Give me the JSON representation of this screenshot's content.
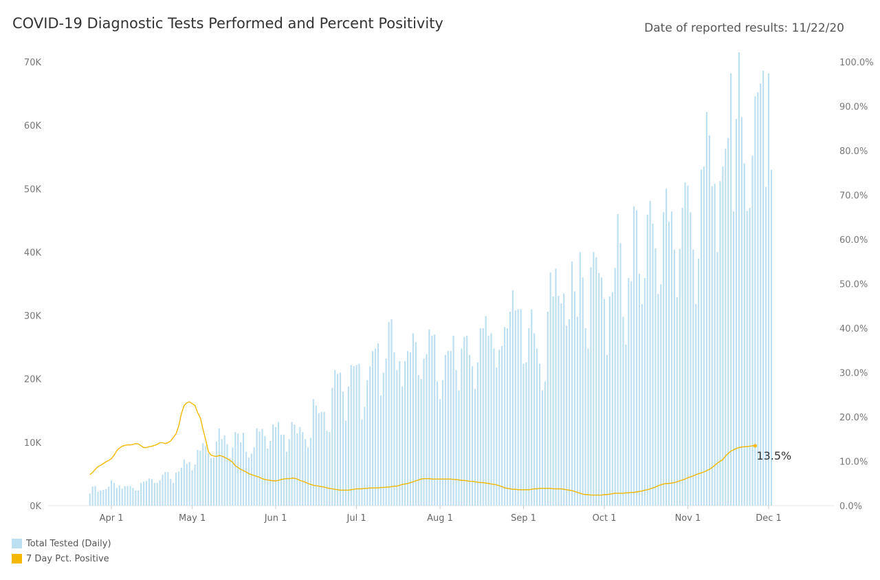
{
  "header": {
    "title": "COVID-19 Diagnostic Tests Performed and Percent Positivity",
    "report_date": "Date of reported results: 11/22/20"
  },
  "legend": {
    "items": [
      {
        "label": "Total Tested (Daily)",
        "color": "#bcdff1"
      },
      {
        "label": "7 Day Pct. Positive",
        "color": "#f5b800"
      }
    ]
  },
  "chart_data": {
    "type": "bar",
    "title": "COVID-19 Diagnostic Tests Performed and Percent Positivity",
    "x_start_date": "2020-03-24",
    "x_range_days": [
      -15.5,
      276.5
    ],
    "x_ticks": [
      {
        "label": "Apr 1",
        "day": 8
      },
      {
        "label": "May 1",
        "day": 38
      },
      {
        "label": "Jun 1",
        "day": 69
      },
      {
        "label": "Jul 1",
        "day": 99
      },
      {
        "label": "Aug 1",
        "day": 130
      },
      {
        "label": "Sep 1",
        "day": 161
      },
      {
        "label": "Oct 1",
        "day": 191
      },
      {
        "label": "Nov 1",
        "day": 222
      },
      {
        "label": "Dec 1",
        "day": 252
      }
    ],
    "y_left": {
      "min": 0,
      "max": 70000,
      "ticks": [
        0,
        10000,
        20000,
        30000,
        40000,
        50000,
        60000,
        70000
      ],
      "tick_labels": [
        "0K",
        "10K",
        "20K",
        "30K",
        "40K",
        "50K",
        "60K",
        "70K"
      ]
    },
    "y_right": {
      "min": 0,
      "max": 100,
      "ticks": [
        0,
        10,
        20,
        30,
        40,
        50,
        60,
        70,
        80,
        90,
        100
      ],
      "tick_labels": [
        "0.0%",
        "10.0%",
        "20.0%",
        "30.0%",
        "40.0%",
        "50.0%",
        "60.0%",
        "70.0%",
        "80.0%",
        "90.0%",
        "100.0%"
      ]
    },
    "series": [
      {
        "name": "Total Tested (Daily)",
        "axis": "left",
        "color": "#bcdff1",
        "values": [
          1900,
          3000,
          3100,
          2200,
          2400,
          2500,
          2600,
          3000,
          4000,
          3600,
          2800,
          3200,
          2700,
          3100,
          3100,
          3100,
          2800,
          2400,
          2400,
          3600,
          3800,
          3900,
          4300,
          4200,
          3600,
          3600,
          4000,
          4900,
          5300,
          5300,
          4200,
          3600,
          5200,
          5400,
          6000,
          7300,
          6600,
          6900,
          5600,
          6500,
          8800,
          8700,
          9900,
          9400,
          8300,
          7500,
          7600,
          10100,
          12200,
          10500,
          11100,
          9700,
          7500,
          9200,
          11600,
          11400,
          10000,
          11500,
          8500,
          7600,
          8200,
          9200,
          12200,
          11700,
          12100,
          11000,
          9000,
          10200,
          12800,
          12400,
          13200,
          11200,
          11200,
          8500,
          10500,
          13200,
          12800,
          11400,
          12400,
          11600,
          10500,
          9200,
          10700,
          16800,
          15800,
          14600,
          14800,
          14800,
          11800,
          11600,
          18600,
          21400,
          20800,
          21000,
          18000,
          13400,
          18800,
          22200,
          22000,
          22200,
          22400,
          13600,
          15600,
          19800,
          22000,
          24400,
          24800,
          25600,
          17400,
          21000,
          23200,
          29000,
          29400,
          24200,
          21400,
          22800,
          18800,
          22800,
          24400,
          24200,
          27200,
          25800,
          20600,
          20000,
          23200,
          23900,
          27800,
          26800,
          27000,
          19600,
          16800,
          19800,
          23800,
          24400,
          24400,
          26800,
          21400,
          18200,
          24800,
          26600,
          26800,
          23800,
          22000,
          18400,
          22600,
          28000,
          28000,
          29900,
          26800,
          27200,
          24800,
          21800,
          24600,
          25200,
          28200,
          28000,
          30600,
          34000,
          30800,
          31000,
          31000,
          22400,
          22600,
          28000,
          31000,
          27200,
          24800,
          22400,
          18200,
          19600,
          30600,
          36800,
          33000,
          37400,
          33100,
          31900,
          33500,
          28400,
          29400,
          38500,
          33800,
          29800,
          40000,
          36000,
          28000,
          24800,
          37600,
          40000,
          39200,
          36700,
          36000,
          32600,
          23800,
          33000,
          33700,
          37500,
          46000,
          41400,
          29800,
          25400,
          35900,
          35400,
          47200,
          46600,
          36600,
          31800,
          35900,
          45900,
          48100,
          44500,
          40600,
          33400,
          34900,
          46300,
          50000,
          44800,
          46400,
          40400,
          32900,
          40500,
          47000,
          51000,
          50500,
          46300,
          40400,
          31800,
          39000,
          53000,
          53500,
          62100,
          58400,
          50400,
          50800,
          40000,
          51200,
          53500,
          56300,
          58000,
          68200,
          46400,
          61000,
          71500,
          61300,
          54000,
          46500,
          47000,
          55200,
          64600,
          65200,
          66600,
          68600,
          50300,
          68200,
          53000
        ]
      },
      {
        "name": "7 Day Pct. Positive",
        "axis": "right",
        "color": "#f5b800",
        "values": [
          7.0,
          7.5,
          8.2,
          8.8,
          9.1,
          9.5,
          9.9,
          10.2,
          10.6,
          11.4,
          12.4,
          13.0,
          13.4,
          13.6,
          13.7,
          13.7,
          13.8,
          14.0,
          13.9,
          13.5,
          13.1,
          13.1,
          13.3,
          13.4,
          13.6,
          13.8,
          14.2,
          14.2,
          14.0,
          14.2,
          14.6,
          15.4,
          16.2,
          18.0,
          20.8,
          22.6,
          23.2,
          23.4,
          23.0,
          22.6,
          21.0,
          19.8,
          17.2,
          14.8,
          12.2,
          11.4,
          11.2,
          11.1,
          11.3,
          11.2,
          10.9,
          10.6,
          10.2,
          9.8,
          9.0,
          8.6,
          8.2,
          7.9,
          7.6,
          7.2,
          7.0,
          6.8,
          6.6,
          6.4,
          6.1,
          5.9,
          5.8,
          5.7,
          5.6,
          5.6,
          5.7,
          5.9,
          6.0,
          6.1,
          6.1,
          6.2,
          6.2,
          6.0,
          5.7,
          5.5,
          5.3,
          5.0,
          4.8,
          4.6,
          4.5,
          4.4,
          4.3,
          4.2,
          4.0,
          3.9,
          3.8,
          3.7,
          3.6,
          3.5,
          3.5,
          3.5,
          3.5,
          3.6,
          3.7,
          3.8,
          3.8,
          3.8,
          3.9,
          3.9,
          4.0,
          4.0,
          4.0,
          4.0,
          4.1,
          4.1,
          4.2,
          4.2,
          4.3,
          4.4,
          4.4,
          4.6,
          4.8,
          4.9,
          5.0,
          5.2,
          5.4,
          5.6,
          5.8,
          6.0,
          6.1,
          6.1,
          6.1,
          6.0,
          6.0,
          6.0,
          6.0,
          6.0,
          6.0,
          6.0,
          6.0,
          5.9,
          5.9,
          5.8,
          5.7,
          5.7,
          5.6,
          5.5,
          5.5,
          5.4,
          5.3,
          5.2,
          5.2,
          5.1,
          5.0,
          4.9,
          4.8,
          4.7,
          4.5,
          4.3,
          4.0,
          3.9,
          3.8,
          3.7,
          3.7,
          3.6,
          3.6,
          3.6,
          3.6,
          3.6,
          3.7,
          3.8,
          3.8,
          3.9,
          3.9,
          3.9,
          3.9,
          3.9,
          3.8,
          3.8,
          3.8,
          3.8,
          3.7,
          3.6,
          3.5,
          3.4,
          3.2,
          3.0,
          2.8,
          2.6,
          2.5,
          2.5,
          2.4,
          2.4,
          2.4,
          2.4,
          2.4,
          2.5,
          2.5,
          2.6,
          2.7,
          2.8,
          2.8,
          2.8,
          2.8,
          2.9,
          2.9,
          3.0,
          3.0,
          3.1,
          3.2,
          3.3,
          3.5,
          3.6,
          3.8,
          4.0,
          4.2,
          4.5,
          4.7,
          4.9,
          5.0,
          5.0,
          5.1,
          5.2,
          5.4,
          5.6,
          5.8,
          6.0,
          6.3,
          6.5,
          6.7,
          7.0,
          7.2,
          7.4,
          7.6,
          7.9,
          8.2,
          8.6,
          9.1,
          9.6,
          10.0,
          10.4,
          11.2,
          11.8,
          12.3,
          12.6,
          12.9,
          13.1,
          13.2,
          13.3,
          13.3,
          13.4,
          13.5,
          13.5
        ]
      }
    ],
    "end_label": "13.5%",
    "legend_position": "bottom-left"
  }
}
